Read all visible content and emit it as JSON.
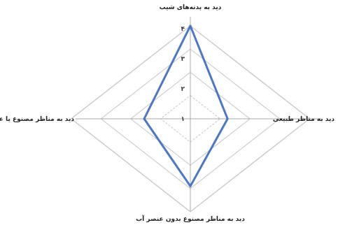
{
  "chart_data": {
    "type": "radar",
    "axes": [
      "دید به بدنه‌های شیب",
      "دید به مناظر طبیعی",
      "دید به مناظر مصنوع بدون عنصر آب",
      "دید به مناظر مصنوع یا عنصر آب"
    ],
    "tick_labels": [
      "۱",
      "۲",
      "۳",
      "۴"
    ],
    "range": [
      1,
      4
    ],
    "gridlines": [
      1,
      2,
      3,
      4
    ],
    "series": [
      {
        "values": [
          4,
          1.25,
          2.9,
          1.55
        ]
      }
    ],
    "colors": {
      "series_line": "#4a77c6",
      "grid": "#c9c9c9",
      "axis": "#a8a8a8"
    }
  }
}
